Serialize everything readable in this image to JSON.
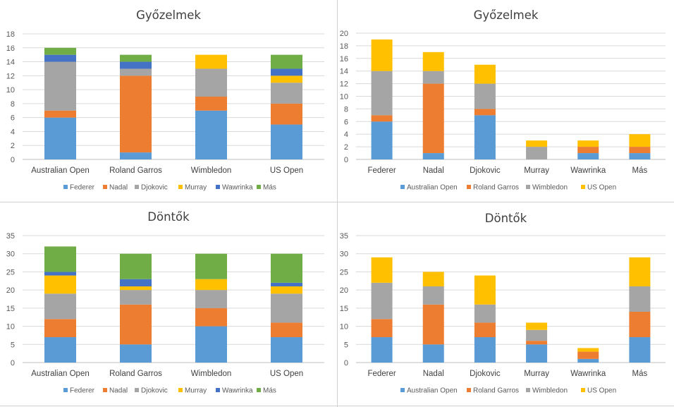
{
  "chart_data": [
    {
      "type": "bar",
      "stacked": true,
      "title": "Győzelmek",
      "categories": [
        "Australian Open",
        "Roland Garros",
        "Wimbledon",
        "US Open"
      ],
      "ylim": [
        0,
        18
      ],
      "yticks": [
        0,
        2,
        4,
        6,
        8,
        10,
        12,
        14,
        16,
        18
      ],
      "grid": true,
      "legend": "bottom",
      "series": [
        {
          "name": "Federer",
          "color": "#5b9bd5",
          "values": [
            6,
            1,
            7,
            5
          ]
        },
        {
          "name": "Nadal",
          "color": "#ed7d31",
          "values": [
            1,
            11,
            2,
            3
          ]
        },
        {
          "name": "Djokovic",
          "color": "#a5a5a5",
          "values": [
            7,
            1,
            4,
            3
          ]
        },
        {
          "name": "Murray",
          "color": "#ffc000",
          "values": [
            0,
            0,
            2,
            1
          ]
        },
        {
          "name": "Wawrinka",
          "color": "#4472c4",
          "values": [
            1,
            1,
            0,
            1
          ]
        },
        {
          "name": "Más",
          "color": "#70ad47",
          "values": [
            1,
            1,
            0,
            2
          ]
        }
      ]
    },
    {
      "type": "bar",
      "stacked": true,
      "title": "Győzelmek",
      "categories": [
        "Federer",
        "Nadal",
        "Djokovic",
        "Murray",
        "Wawrinka",
        "Más"
      ],
      "ylim": [
        0,
        20
      ],
      "yticks": [
        0,
        2,
        4,
        6,
        8,
        10,
        12,
        14,
        16,
        18,
        20
      ],
      "grid": true,
      "legend": "bottom",
      "series": [
        {
          "name": "Australian Open",
          "color": "#5b9bd5",
          "values": [
            6,
            1,
            7,
            0,
            1,
            1
          ]
        },
        {
          "name": "Roland Garros",
          "color": "#ed7d31",
          "values": [
            1,
            11,
            1,
            0,
            1,
            1
          ]
        },
        {
          "name": "Wimbledon",
          "color": "#a5a5a5",
          "values": [
            7,
            2,
            4,
            2,
            0,
            0
          ]
        },
        {
          "name": "US Open",
          "color": "#ffc000",
          "values": [
            5,
            3,
            3,
            1,
            1,
            2
          ]
        }
      ]
    },
    {
      "type": "bar",
      "stacked": true,
      "title": "Döntők",
      "categories": [
        "Australian Open",
        "Roland Garros",
        "Wimbledon",
        "US Open"
      ],
      "ylim": [
        0,
        35
      ],
      "yticks": [
        0,
        5,
        10,
        15,
        20,
        25,
        30,
        35
      ],
      "grid": true,
      "legend": "bottom",
      "series": [
        {
          "name": "Federer",
          "color": "#5b9bd5",
          "values": [
            7,
            5,
            10,
            7
          ]
        },
        {
          "name": "Nadal",
          "color": "#ed7d31",
          "values": [
            5,
            11,
            5,
            4
          ]
        },
        {
          "name": "Djokovic",
          "color": "#a5a5a5",
          "values": [
            7,
            4,
            5,
            8
          ]
        },
        {
          "name": "Murray",
          "color": "#ffc000",
          "values": [
            5,
            1,
            3,
            2
          ]
        },
        {
          "name": "Wawrinka",
          "color": "#4472c4",
          "values": [
            1,
            2,
            0,
            1
          ]
        },
        {
          "name": "Más",
          "color": "#70ad47",
          "values": [
            7,
            7,
            7,
            8
          ]
        }
      ]
    },
    {
      "type": "bar",
      "stacked": true,
      "title": "Döntők",
      "categories": [
        "Federer",
        "Nadal",
        "Djokovic",
        "Murray",
        "Wawrinka",
        "Más"
      ],
      "ylim": [
        0,
        35
      ],
      "yticks": [
        0,
        5,
        10,
        15,
        20,
        25,
        30,
        35
      ],
      "grid": true,
      "legend": "bottom",
      "series": [
        {
          "name": "Australian Open",
          "color": "#5b9bd5",
          "values": [
            7,
            5,
            7,
            5,
            1,
            7
          ]
        },
        {
          "name": "Roland Garros",
          "color": "#ed7d31",
          "values": [
            5,
            11,
            4,
            1,
            2,
            7
          ]
        },
        {
          "name": "Wimbledon",
          "color": "#a5a5a5",
          "values": [
            10,
            5,
            5,
            3,
            0,
            7
          ]
        },
        {
          "name": "US Open",
          "color": "#ffc000",
          "values": [
            7,
            4,
            8,
            2,
            1,
            8
          ]
        }
      ]
    }
  ]
}
